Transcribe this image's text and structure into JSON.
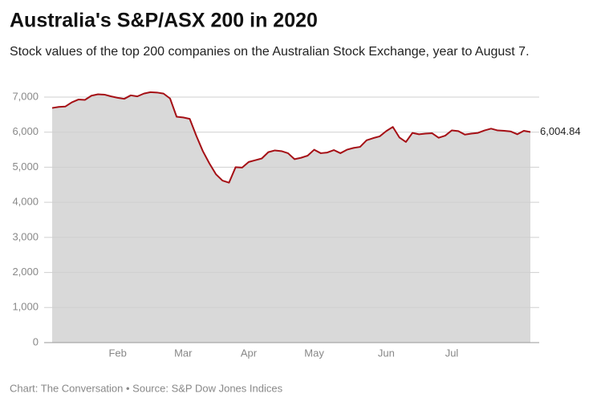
{
  "chart_data": {
    "type": "area",
    "title": "Australia's S&P/ASX 200 in 2020",
    "subtitle": "Stock values of the top 200 companies on the Australian Stock Exchange, year to August 7.",
    "source": "Chart: The Conversation • Source: S&P Dow Jones Indices",
    "categories": [
      null,
      null,
      null,
      null,
      null,
      null,
      null,
      null,
      null,
      null,
      "Feb",
      null,
      null,
      null,
      null,
      null,
      null,
      null,
      null,
      null,
      "Mar",
      null,
      null,
      null,
      null,
      null,
      null,
      null,
      null,
      null,
      "Apr",
      null,
      null,
      null,
      null,
      null,
      null,
      null,
      null,
      null,
      "May",
      null,
      null,
      null,
      null,
      null,
      null,
      null,
      null,
      null,
      null,
      "Jun",
      null,
      null,
      null,
      null,
      null,
      null,
      null,
      null,
      null,
      "Jul",
      null,
      null,
      null,
      null,
      null,
      null,
      null,
      null,
      null,
      null,
      null,
      null
    ],
    "values": [
      6690,
      6720,
      6730,
      6850,
      6930,
      6920,
      7040,
      7080,
      7070,
      7020,
      6980,
      6950,
      7050,
      7020,
      7100,
      7140,
      7130,
      7100,
      6960,
      6440,
      6420,
      6380,
      5900,
      5460,
      5110,
      4800,
      4620,
      4560,
      5000,
      4990,
      5150,
      5200,
      5250,
      5430,
      5480,
      5460,
      5400,
      5230,
      5270,
      5330,
      5500,
      5400,
      5420,
      5490,
      5400,
      5500,
      5550,
      5580,
      5770,
      5830,
      5880,
      6030,
      6150,
      5850,
      5720,
      5980,
      5940,
      5960,
      5970,
      5840,
      5900,
      6050,
      6030,
      5930,
      5960,
      5980,
      6050,
      6100,
      6050,
      6040,
      6020,
      5940,
      6040,
      6004.84
    ],
    "value_labels": [
      null,
      null,
      null,
      null,
      null,
      null,
      null,
      null,
      null,
      null,
      null,
      null,
      null,
      null,
      null,
      null,
      null,
      null,
      null,
      null,
      null,
      null,
      null,
      null,
      null,
      null,
      null,
      null,
      null,
      null,
      null,
      null,
      null,
      null,
      null,
      null,
      null,
      null,
      null,
      null,
      null,
      null,
      null,
      null,
      null,
      null,
      null,
      null,
      null,
      null,
      null,
      null,
      null,
      null,
      null,
      null,
      null,
      null,
      null,
      null,
      null,
      null,
      null,
      null,
      null,
      null,
      null,
      null,
      null,
      null,
      null,
      null,
      null,
      "6,004.84"
    ],
    "color": "#a50f15",
    "fill_color": "#d9d9d9",
    "ylim": [
      0,
      7000
    ],
    "yticks": [
      0,
      {
        "value": 1000,
        "label": "1,000"
      },
      {
        "value": 2000,
        "label": "2,000"
      },
      {
        "value": 3000,
        "label": "3,000"
      },
      {
        "value": 4000,
        "label": "4,000"
      },
      {
        "value": 5000,
        "label": "5,000"
      },
      {
        "value": 6000,
        "label": "6,000"
      },
      {
        "value": 7000,
        "label": "7,000"
      }
    ],
    "grid": true
  }
}
